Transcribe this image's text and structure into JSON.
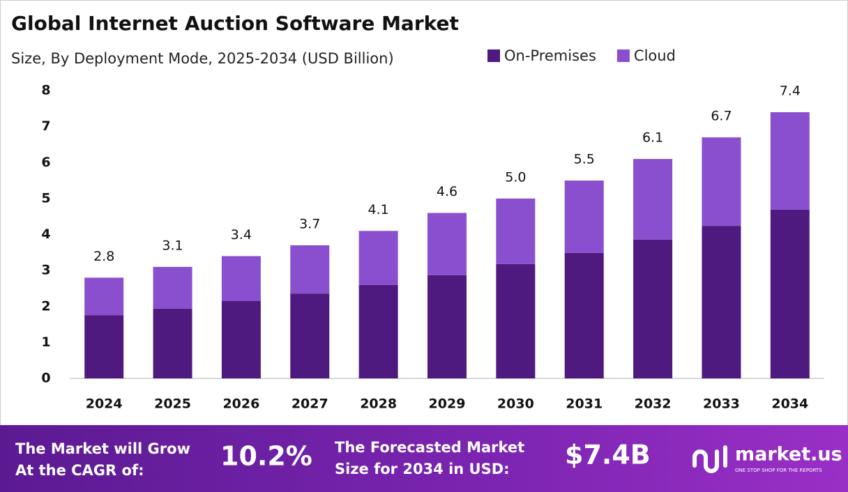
{
  "chart_data": {
    "type": "stacked_bar",
    "title": "Global Internet Auction Software Market",
    "subtitle": "Size, By Deployment Mode, 2025-2034 (USD Billion)",
    "categories": [
      "2024",
      "2025",
      "2026",
      "2027",
      "2028",
      "2029",
      "2030",
      "2031",
      "2032",
      "2033",
      "2034"
    ],
    "series": [
      {
        "name": "On-Premises",
        "color": "#4f1a80",
        "values": [
          1.76,
          1.94,
          2.15,
          2.36,
          2.6,
          2.87,
          3.18,
          3.49,
          3.86,
          4.24,
          4.69
        ]
      },
      {
        "name": "Cloud",
        "color": "#8a4fcf",
        "values": [
          1.04,
          1.16,
          1.25,
          1.34,
          1.5,
          1.73,
          1.82,
          2.01,
          2.24,
          2.46,
          2.71
        ]
      }
    ],
    "totals": {
      "values": [
        2.8,
        3.1,
        3.4,
        3.7,
        4.1,
        4.6,
        5.0,
        5.5,
        6.1,
        6.7,
        7.4
      ],
      "value_labels": [
        "2.8",
        "3.1",
        "3.4",
        "3.7",
        "4.1",
        "4.6",
        "5.0",
        "5.5",
        "6.1",
        "6.7",
        "7.4"
      ]
    },
    "ylim": [
      0,
      8
    ],
    "yticks": [
      0,
      1,
      2,
      3,
      4,
      5,
      6,
      7,
      8
    ],
    "grid": false,
    "legend": "top-right"
  },
  "footer": {
    "cagr_label": [
      "The Market will Grow",
      "At the CAGR of:"
    ],
    "cagr_value": "10.2%",
    "size_label": [
      "The Forecasted Market",
      "Size for 2034 in USD:"
    ],
    "size_value": "$7.4B",
    "brand": "market.us",
    "tagline": "ONE STOP SHOP FOR THE REPORTS"
  }
}
